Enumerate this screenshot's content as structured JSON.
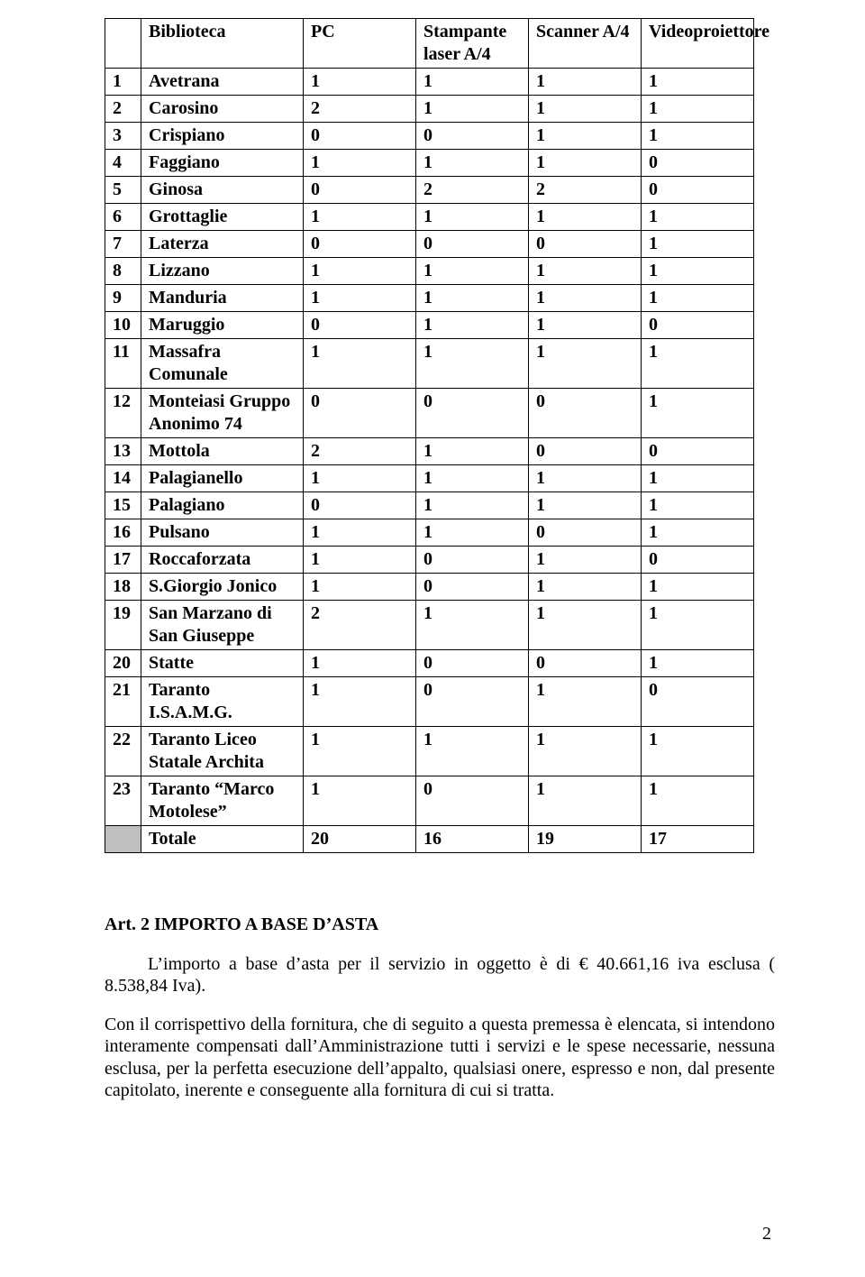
{
  "table": {
    "headers": [
      "",
      "Biblioteca",
      "PC",
      "Stampante laser A/4",
      "Scanner A/4",
      "Videoproiettore"
    ],
    "rows": [
      [
        "1",
        "Avetrana",
        "1",
        "1",
        "1",
        "1"
      ],
      [
        "2",
        "Carosino",
        "2",
        "1",
        "1",
        "1"
      ],
      [
        "3",
        "Crispiano",
        "0",
        "0",
        "1",
        "1"
      ],
      [
        "4",
        "Faggiano",
        "1",
        "1",
        "1",
        "0"
      ],
      [
        "5",
        "Ginosa",
        "0",
        "2",
        "2",
        "0"
      ],
      [
        "6",
        "Grottaglie",
        "1",
        "1",
        "1",
        "1"
      ],
      [
        "7",
        "Laterza",
        "0",
        "0",
        "0",
        "1"
      ],
      [
        "8",
        "Lizzano",
        "1",
        "1",
        "1",
        "1"
      ],
      [
        "9",
        "Manduria",
        "1",
        "1",
        "1",
        "1"
      ],
      [
        "10",
        "Maruggio",
        "0",
        "1",
        "1",
        "0"
      ],
      [
        "11",
        "Massafra Comunale",
        "1",
        "1",
        "1",
        "1"
      ],
      [
        "12",
        "Monteiasi Gruppo Anonimo 74",
        "0",
        "0",
        "0",
        "1"
      ],
      [
        "13",
        "Mottola",
        "2",
        "1",
        "0",
        "0"
      ],
      [
        "14",
        "Palagianello",
        "1",
        "1",
        "1",
        "1"
      ],
      [
        "15",
        "Palagiano",
        "0",
        "1",
        "1",
        "1"
      ],
      [
        "16",
        "Pulsano",
        "1",
        "1",
        "0",
        "1"
      ],
      [
        "17",
        "Roccaforzata",
        "1",
        "0",
        "1",
        "0"
      ],
      [
        "18",
        "S.Giorgio Jonico",
        "1",
        "0",
        "1",
        "1"
      ],
      [
        "19",
        "San Marzano di San Giuseppe",
        "2",
        "1",
        "1",
        "1"
      ],
      [
        "20",
        "Statte",
        "1",
        "0",
        "0",
        "1"
      ],
      [
        "21",
        "Taranto I.S.A.M.G.",
        "1",
        "0",
        "1",
        "0"
      ],
      [
        "22",
        "Taranto Liceo Statale Archita",
        "1",
        "1",
        "1",
        "1"
      ],
      [
        "23",
        "Taranto “Marco Motolese”",
        "1",
        "0",
        "1",
        "1"
      ]
    ],
    "totale": [
      "",
      "Totale",
      "20",
      "16",
      "19",
      "17"
    ]
  },
  "article": {
    "title": "Art. 2 IMPORTO A BASE D’ASTA",
    "p1": "L’importo a base d’asta per  il servizio in oggetto è di € 40.661,16 iva esclusa ( 8.538,84 Iva).",
    "p2": "Con il corrispettivo della fornitura, che di seguito a questa premessa è elencata, si intendono interamente compensati dall’Amministrazione tutti i servizi e le spese necessarie, nessuna esclusa, per la perfetta esecuzione dell’appalto, qualsiasi onere, espresso e non, dal presente capitolato, inerente e conseguente alla fornitura di cui si tratta."
  },
  "page_number": "2"
}
